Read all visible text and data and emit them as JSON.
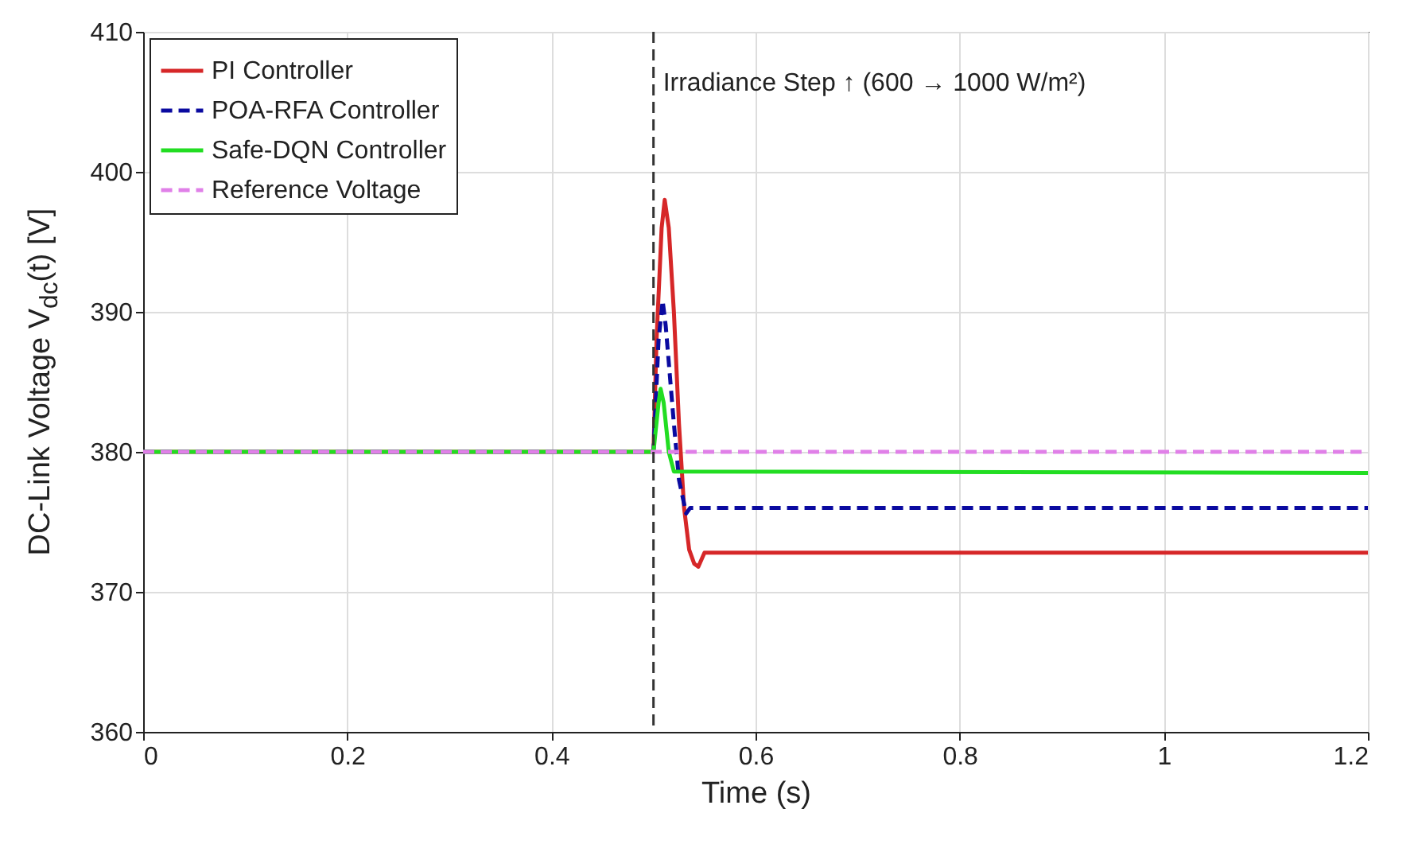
{
  "chart_data": {
    "type": "line",
    "xlabel": "Time (s)",
    "ylabel": "DC-Link Voltage V$_{dc}$(t) [V]",
    "xlim": [
      0,
      1.2
    ],
    "xticks": [
      0,
      0.2,
      0.4,
      0.6,
      0.8,
      1,
      1.2
    ],
    "ylim": [
      360,
      410
    ],
    "yticks": [
      360,
      370,
      380,
      390,
      400,
      410
    ],
    "grid": true,
    "legend": "top left",
    "series": [
      {
        "name": "PI Controller",
        "color": "#d62728",
        "line_style": "solid",
        "x": [
          0,
          0.5,
          0.503,
          0.508,
          0.511,
          0.515,
          0.52,
          0.525,
          0.53,
          0.535,
          0.54,
          0.544,
          0.55,
          1.2
        ],
        "values": [
          380,
          380,
          388,
          396,
          398,
          396,
          390,
          382,
          376,
          373,
          372,
          371.8,
          372.8,
          372.8
        ]
      },
      {
        "name": "POA-RFA Controller",
        "color": "#0a0aa0",
        "line_style": "dashed",
        "x": [
          0,
          0.5,
          0.505,
          0.509,
          0.512,
          0.52,
          0.525,
          0.532,
          0.536,
          1.2
        ],
        "values": [
          380,
          380,
          388,
          390.8,
          389,
          382,
          378,
          375.6,
          376,
          376
        ]
      },
      {
        "name": "Safe-DQN Controller",
        "color": "#22dd22",
        "line_style": "solid",
        "x": [
          0,
          0.5,
          0.505,
          0.507,
          0.51,
          0.515,
          0.52,
          1.2
        ],
        "values": [
          380,
          380,
          383.5,
          384.5,
          383.5,
          380,
          378.6,
          378.5
        ]
      },
      {
        "name": "Reference Voltage",
        "color": "#e080e8",
        "line_style": "dashed",
        "x": [
          0,
          1.2
        ],
        "values": [
          380,
          380
        ]
      }
    ],
    "ref_lines": [
      {
        "axis": "x",
        "value": 0.5,
        "label": "Irradiance Step ↑ (600 → 1000 W/m²)",
        "color": "#333333",
        "line_style": "dashed"
      }
    ]
  }
}
